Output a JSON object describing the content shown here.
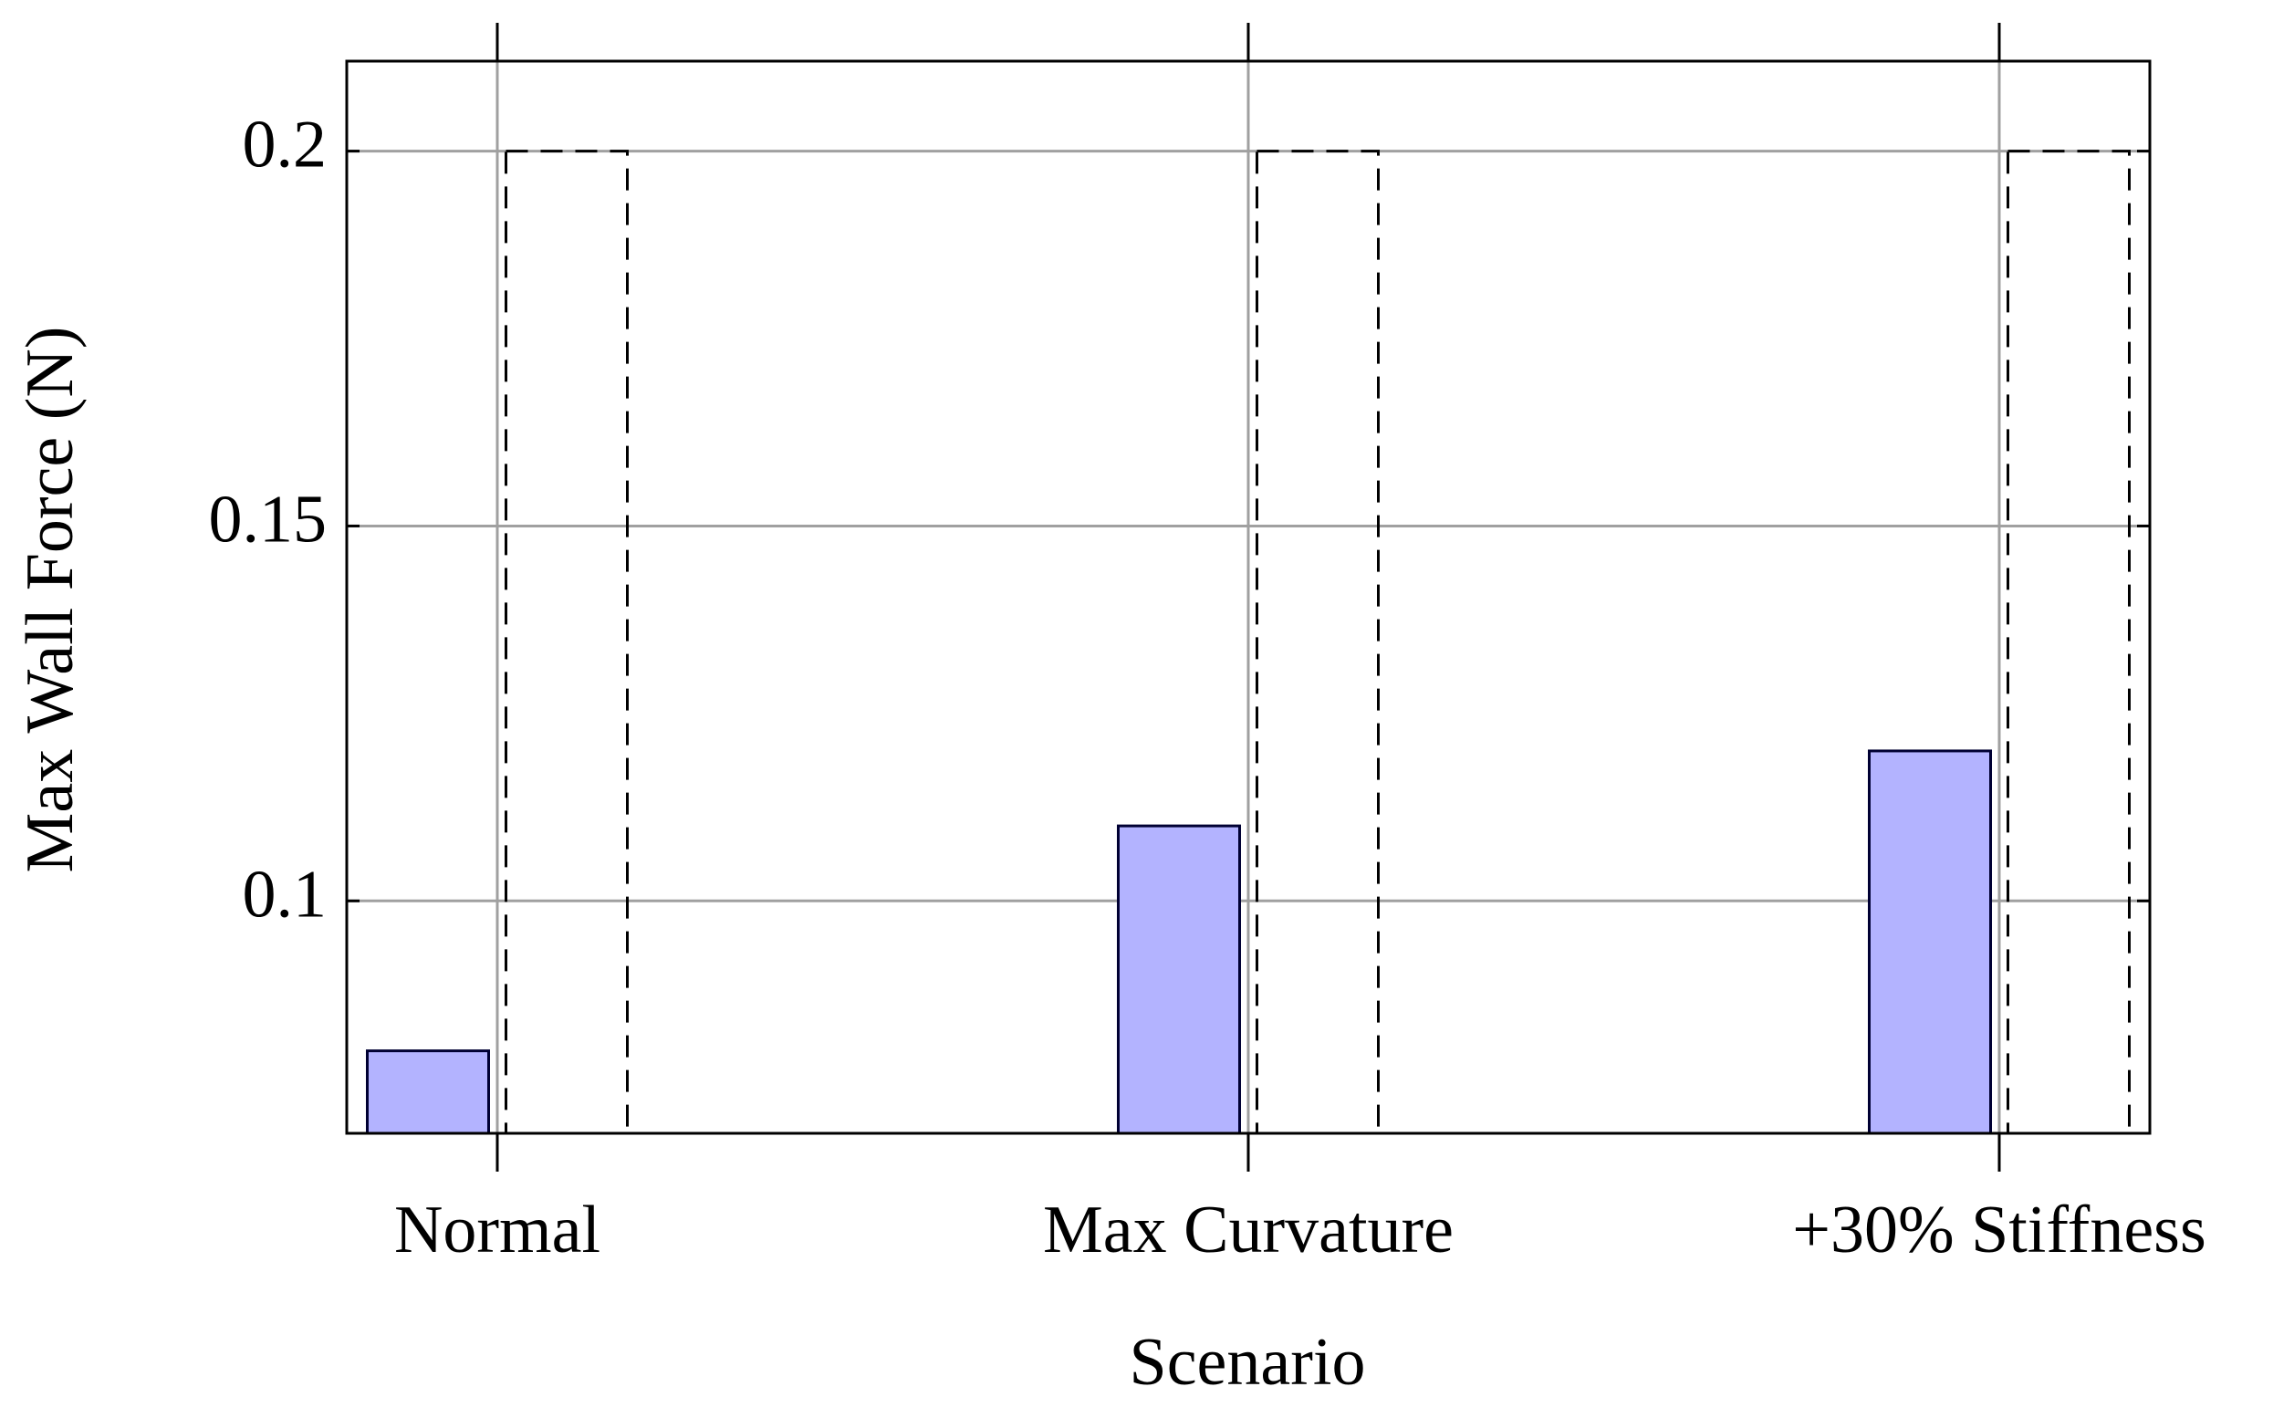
{
  "chart_data": {
    "type": "bar",
    "x_label": "Scenario",
    "y_label": "Max Wall Force (N)",
    "categories": [
      "Normal",
      "Max Curvature",
      "+30% Stiffness"
    ],
    "series": [
      {
        "color": "#b3b3ff",
        "values": [
          0.08,
          0.11,
          0.12
        ]
      },
      {
        "color": "#000000",
        "dashed": true,
        "values": [
          0.2,
          0.2,
          0.2
        ]
      }
    ],
    "ylim": [
      0.069,
      0.212
    ],
    "yticks": [
      0.1,
      0.15,
      0.2
    ],
    "grid": true
  }
}
